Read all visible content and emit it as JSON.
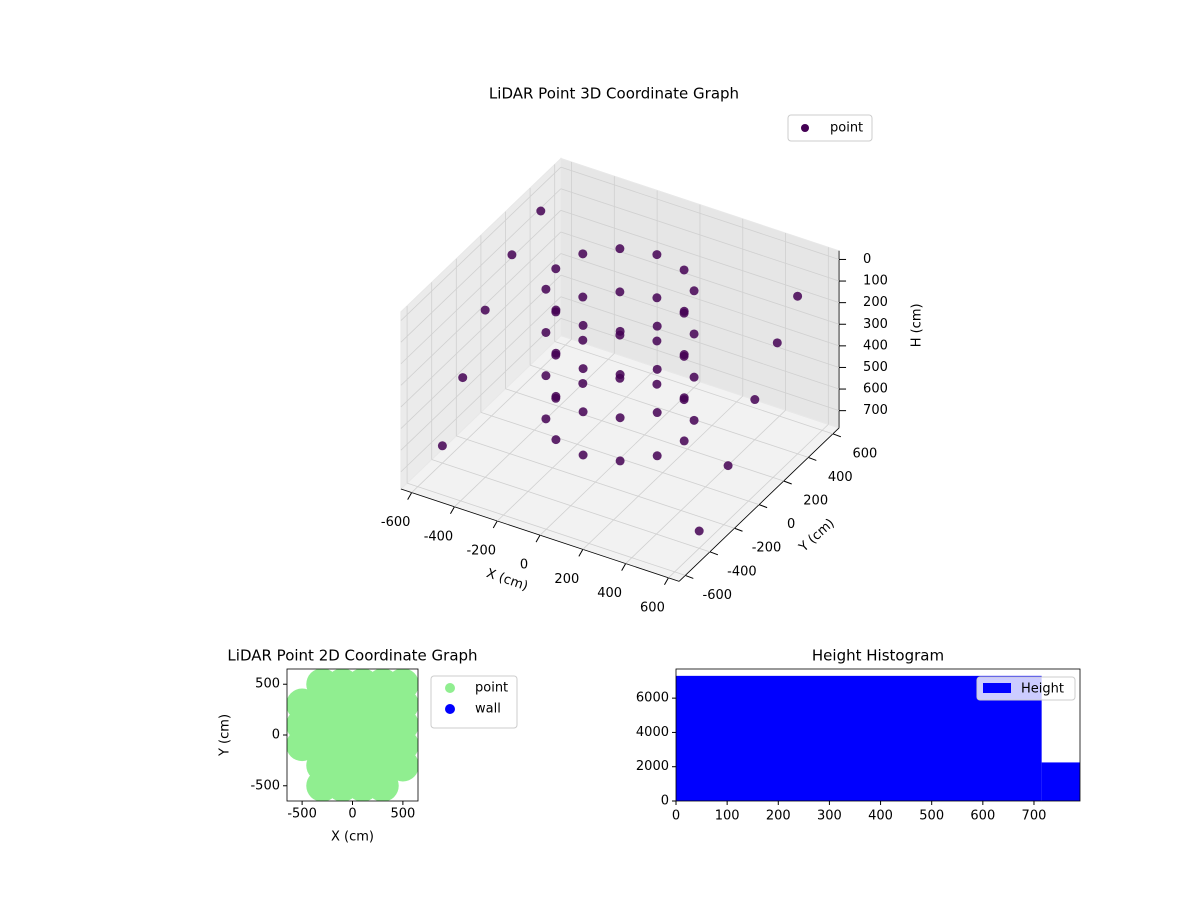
{
  "chart_data": [
    {
      "type": "scatter3d",
      "title": "LiDAR Point 3D Coordinate Graph",
      "xlabel": "X (cm)",
      "ylabel": "Y (cm)",
      "zlabel": "H (cm)",
      "xlim": [
        -650,
        650
      ],
      "ylim": [
        -650,
        650
      ],
      "zlim": [
        -40,
        780
      ],
      "z_inverted": true,
      "xticks": [
        -600,
        -400,
        -200,
        0,
        200,
        400,
        600
      ],
      "yticks": [
        -600,
        -400,
        -200,
        0,
        200,
        400,
        600
      ],
      "zticks": [
        0,
        100,
        200,
        300,
        400,
        500,
        600,
        700
      ],
      "grid": true,
      "legend": "upper right",
      "series": [
        {
          "name": "point",
          "color": "#440154",
          "x": [
            300,
            260,
            150,
            0,
            -150,
            -260,
            -300,
            -260,
            -150,
            0,
            150,
            260,
            300,
            260,
            150,
            0,
            -150,
            -260,
            -300,
            -260,
            -150,
            0,
            150,
            260,
            300,
            260,
            150,
            0,
            -150,
            -260,
            -300,
            -260,
            -150,
            0,
            150,
            260,
            300,
            260,
            150,
            0,
            -150,
            -260,
            -300,
            -260,
            -150,
            0,
            150,
            260,
            -600,
            -620,
            -630,
            -620,
            -600,
            600,
            620,
            630,
            620,
            600
          ],
          "y": [
            0,
            150,
            260,
            300,
            260,
            150,
            0,
            -150,
            -260,
            -300,
            -260,
            -150,
            0,
            150,
            260,
            300,
            260,
            150,
            0,
            -150,
            -260,
            -300,
            -260,
            -150,
            0,
            150,
            260,
            300,
            260,
            150,
            0,
            -150,
            -260,
            -300,
            -260,
            -150,
            0,
            150,
            260,
            300,
            260,
            150,
            0,
            -150,
            -260,
            -300,
            -260,
            -150,
            -400,
            -200,
            0,
            200,
            400,
            -400,
            -200,
            0,
            200,
            400
          ],
          "z": [
            0,
            0,
            0,
            0,
            0,
            0,
            0,
            0,
            0,
            0,
            0,
            0,
            200,
            200,
            200,
            200,
            200,
            200,
            200,
            200,
            200,
            200,
            200,
            200,
            400,
            400,
            400,
            400,
            400,
            400,
            400,
            400,
            400,
            400,
            400,
            400,
            600,
            600,
            600,
            600,
            600,
            600,
            600,
            600,
            600,
            600,
            600,
            600,
            700,
            500,
            300,
            150,
            50,
            700,
            500,
            300,
            150,
            50
          ]
        }
      ]
    },
    {
      "type": "scatter",
      "title": "LiDAR Point 2D Coordinate Graph",
      "xlabel": "X (cm)",
      "ylabel": "Y (cm)",
      "xlim": [
        -650,
        650
      ],
      "ylim": [
        -650,
        650
      ],
      "xticks": [
        -500,
        0,
        500
      ],
      "yticks": [
        -500,
        0,
        500
      ],
      "legend": "outside upper right",
      "series": [
        {
          "name": "point",
          "color": "lightgreen",
          "x": [
            -300,
            -100,
            100,
            300,
            500,
            -500,
            -300,
            -100,
            100,
            300,
            500,
            -500,
            -300,
            -100,
            100,
            300,
            500,
            -500,
            -300,
            -100,
            100,
            300,
            500,
            -300,
            -100,
            100,
            300,
            500,
            -300,
            -100,
            100,
            300
          ],
          "y": [
            500,
            500,
            500,
            500,
            500,
            300,
            300,
            300,
            300,
            300,
            300,
            100,
            100,
            100,
            100,
            100,
            100,
            -100,
            -100,
            -100,
            -100,
            -100,
            -100,
            -300,
            -300,
            -300,
            -300,
            -300,
            -500,
            -500,
            -500,
            -500
          ]
        },
        {
          "name": "wall",
          "color": "blue",
          "x": [],
          "y": []
        }
      ]
    },
    {
      "type": "histogram",
      "title": "Height Histogram",
      "bins": [
        0,
        715,
        790
      ],
      "values": [
        7300,
        2250
      ],
      "color": "blue",
      "series_name": "Height",
      "legend": "upper right",
      "xlim": [
        0,
        790
      ],
      "ylim": [
        0,
        7700
      ],
      "xticks": [
        0,
        100,
        200,
        300,
        400,
        500,
        600,
        700
      ],
      "yticks": [
        0,
        2000,
        4000,
        6000
      ]
    }
  ]
}
